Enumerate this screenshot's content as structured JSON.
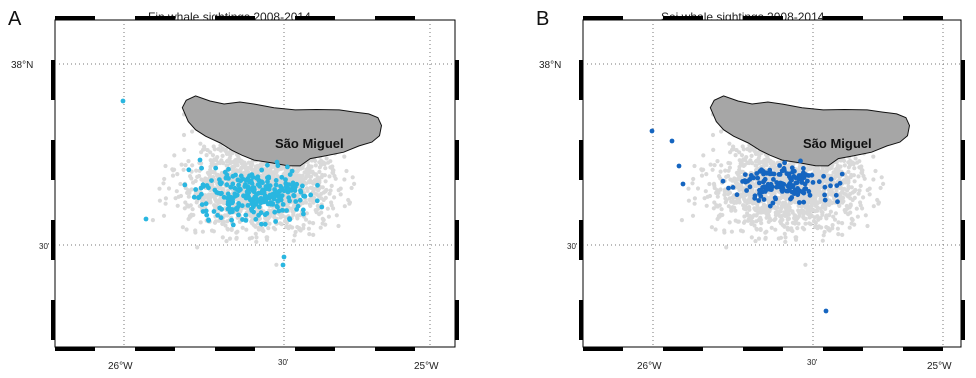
{
  "panels": [
    {
      "letter": "A",
      "title": "Fin whale sightings 2008-2014",
      "island_label": "São Miguel",
      "tick_labels": {
        "lat_top": "38°N",
        "lat_mid": "30'",
        "lon_left": "26°W",
        "lon_mid": "30'",
        "lon_right": "25°W"
      },
      "sighting_color": "#29b6e0",
      "effort_color": "#d9d9d9",
      "sighting_density": "high"
    },
    {
      "letter": "B",
      "title": "Sei whale sightings 2008-2014",
      "island_label": "São Miguel",
      "tick_labels": {
        "lat_top": "38°N",
        "lat_mid": "30'",
        "lon_left": "26°W",
        "lon_mid": "30'",
        "lon_right": "25°W"
      },
      "sighting_color": "#1565c0",
      "effort_color": "#d9d9d9",
      "sighting_density": "medium"
    }
  ],
  "colors": {
    "island_fill": "#a6a6a6",
    "island_stroke": "#111111",
    "frame": "#000000",
    "grid": "#777777"
  }
}
